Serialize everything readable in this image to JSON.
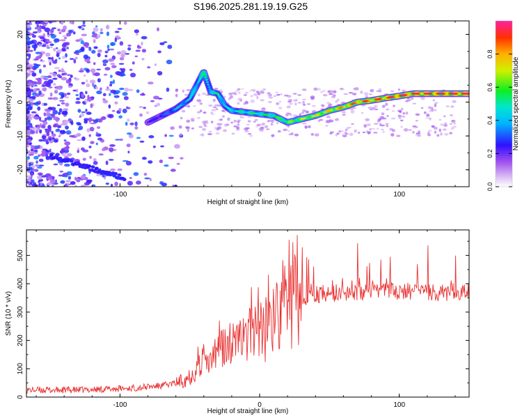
{
  "title": "S196.2025.281.19.19.G25",
  "chart_data": [
    {
      "type": "heatmap",
      "title": "S196.2025.281.19.19.G25",
      "xlabel": "Height of straight line (km)",
      "ylabel": "Frequency (Hz)",
      "xlim": [
        -167,
        150
      ],
      "ylim": [
        -25,
        24
      ],
      "xticks": [
        -100,
        0,
        100
      ],
      "yticks": [
        -20,
        -10,
        0,
        10,
        20
      ],
      "colorbar": {
        "label": "Normalized spectral amplitude",
        "range": [
          0.0,
          1.0
        ],
        "ticks": [
          "0.0",
          "0.2",
          "0.4",
          "0.6",
          "0.8"
        ]
      },
      "ridge": {
        "x": [
          -80,
          -70,
          -60,
          -50,
          -45,
          -40,
          -35,
          -30,
          -25,
          -20,
          -10,
          0,
          10,
          20,
          30,
          40,
          50,
          60,
          70,
          80,
          90,
          100,
          110,
          120,
          130,
          140,
          150
        ],
        "y": [
          -6,
          -4,
          -2,
          1,
          5,
          9,
          3,
          2.5,
          -1,
          -2.5,
          -3,
          -3.5,
          -4,
          -6,
          -5,
          -4,
          -2.5,
          -1.5,
          0,
          0.5,
          1.2,
          1.8,
          2.5,
          2.5,
          2.5,
          2.5,
          2.5
        ],
        "amplitude": [
          0.25,
          0.3,
          0.4,
          0.45,
          0.5,
          0.55,
          0.5,
          0.55,
          0.45,
          0.5,
          0.55,
          0.55,
          0.6,
          0.65,
          0.7,
          0.75,
          0.8,
          0.85,
          0.9,
          0.92,
          0.95,
          0.97,
          0.98,
          0.99,
          1.0,
          1.0,
          1.0
        ]
      }
    },
    {
      "type": "line",
      "xlabel": "Height of straight line (km)",
      "ylabel": "SNR (10 * v/v)",
      "xlim": [
        -167,
        150
      ],
      "ylim": [
        0,
        590
      ],
      "xticks": [
        -100,
        0,
        100
      ],
      "yticks": [
        0,
        100,
        200,
        300,
        400,
        500
      ],
      "series": [
        {
          "name": "SNR",
          "color": "#e83030",
          "x": [
            -167,
            -150,
            -130,
            -110,
            -90,
            -70,
            -60,
            -55,
            -50,
            -45,
            -40,
            -35,
            -30,
            -25,
            -20,
            -15,
            -10,
            -5,
            0,
            5,
            10,
            15,
            20,
            25,
            30,
            35,
            40,
            50,
            60,
            70,
            80,
            90,
            100,
            110,
            120,
            130,
            140,
            150
          ],
          "y": [
            25,
            25,
            25,
            28,
            32,
            40,
            50,
            60,
            75,
            100,
            120,
            140,
            160,
            180,
            190,
            200,
            210,
            220,
            230,
            240,
            260,
            285,
            310,
            330,
            345,
            355,
            360,
            365,
            368,
            370,
            370,
            372,
            372,
            370,
            368,
            368,
            370,
            372
          ]
        }
      ]
    }
  ]
}
